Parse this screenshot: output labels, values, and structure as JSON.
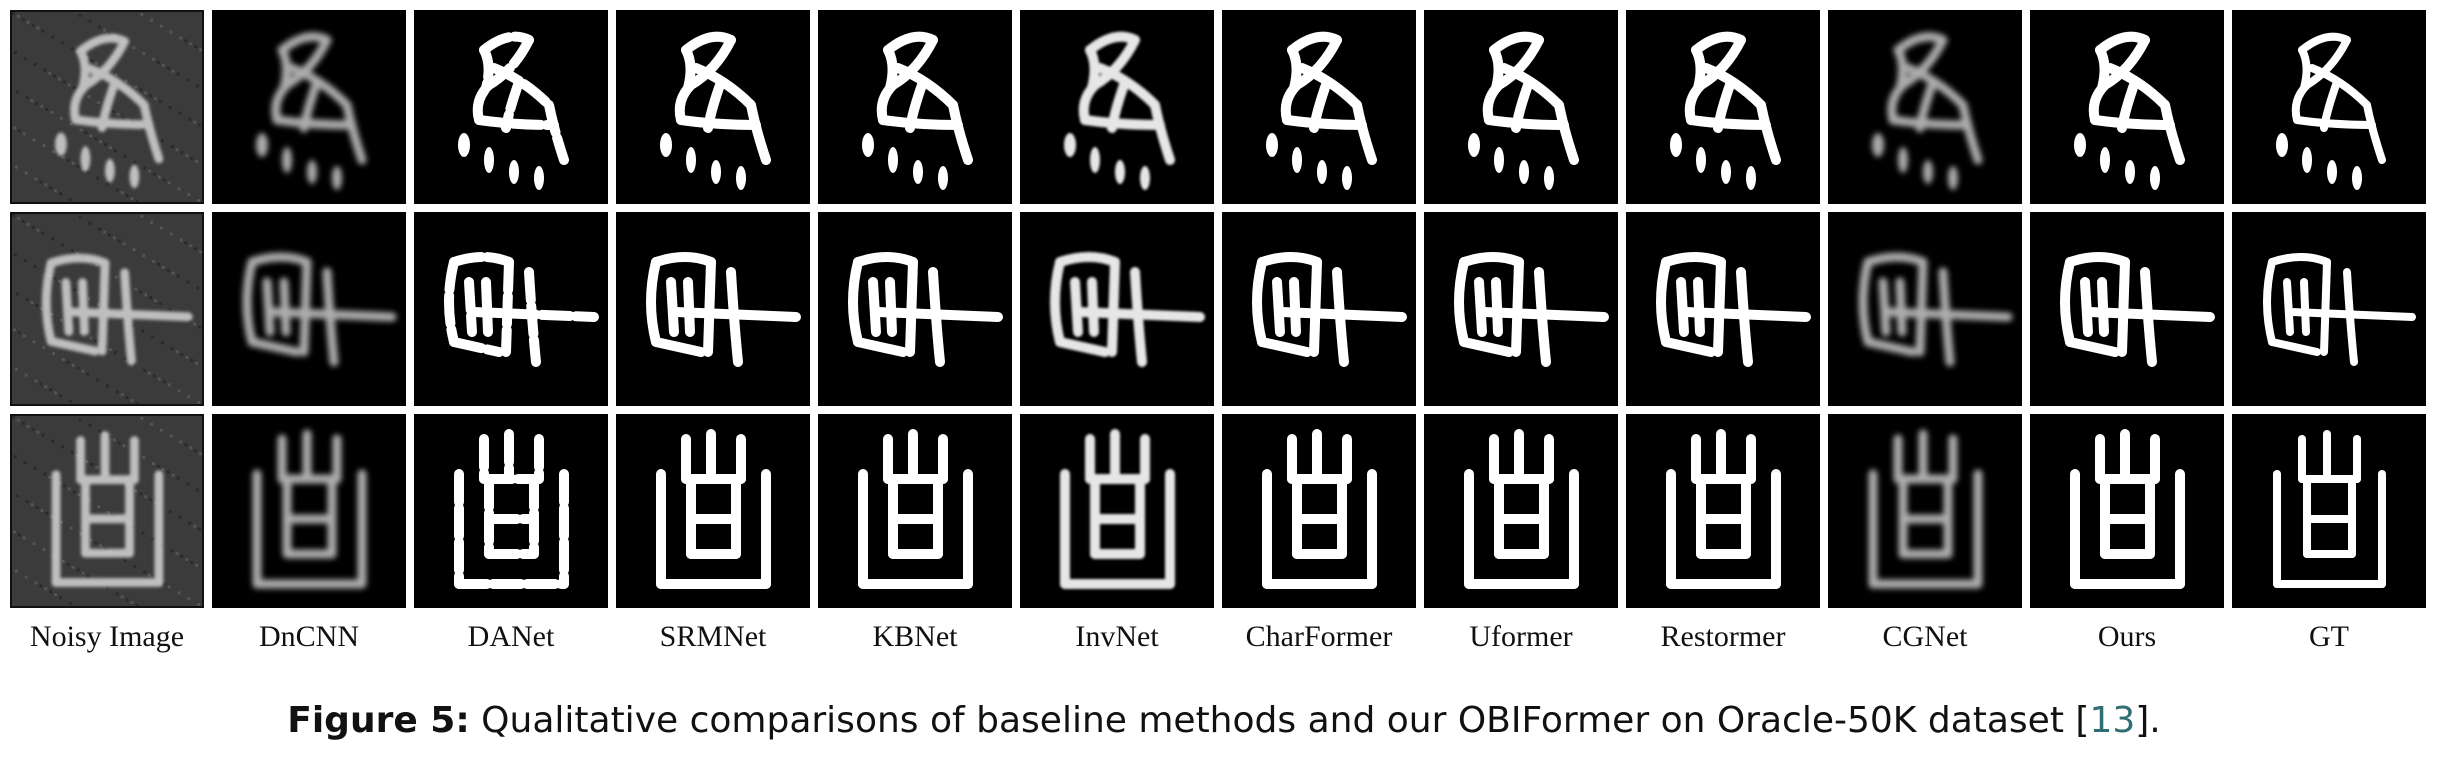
{
  "figure": {
    "columns": [
      {
        "label": "Noisy Image",
        "style": "noisy"
      },
      {
        "label": "DnCNN",
        "style": "blur"
      },
      {
        "label": "DANet",
        "style": "broken"
      },
      {
        "label": "SRMNet",
        "style": "clean"
      },
      {
        "label": "KBNet",
        "style": "clean"
      },
      {
        "label": "InvNet",
        "style": "faded"
      },
      {
        "label": "CharFormer",
        "style": "clean"
      },
      {
        "label": "Uformer",
        "style": "clean"
      },
      {
        "label": "Restormer",
        "style": "clean"
      },
      {
        "label": "CGNet",
        "style": "blur"
      },
      {
        "label": "Ours",
        "style": "clean"
      },
      {
        "label": "GT",
        "style": "gt"
      }
    ],
    "rows": [
      "glyph-a",
      "glyph-b",
      "glyph-c"
    ],
    "caption": {
      "label": "Figure 5:",
      "text_before": " Qualitative comparisons of baseline methods and our OBIFormer on Oracle-50K dataset [",
      "citation": "13",
      "text_after": "]."
    }
  }
}
